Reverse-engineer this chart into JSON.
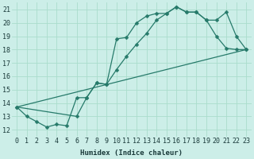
{
  "xlabel": "Humidex (Indice chaleur)",
  "bg_color": "#cceee8",
  "grid_color": "#aaddcc",
  "line_color": "#267a6a",
  "xlim": [
    -0.5,
    23.5
  ],
  "ylim": [
    11.5,
    21.5
  ],
  "yticks": [
    12,
    13,
    14,
    15,
    16,
    17,
    18,
    19,
    20,
    21
  ],
  "xticks": [
    0,
    1,
    2,
    3,
    4,
    5,
    6,
    7,
    8,
    9,
    10,
    11,
    12,
    13,
    14,
    15,
    16,
    17,
    18,
    19,
    20,
    21,
    22,
    23
  ],
  "curve1_x": [
    0,
    1,
    2,
    3,
    4,
    5,
    6,
    7,
    8,
    9,
    10,
    11,
    12,
    13,
    14,
    15,
    16,
    17,
    18,
    19,
    20,
    21,
    22,
    23
  ],
  "curve1_y": [
    13.7,
    13.0,
    12.6,
    12.2,
    12.4,
    12.3,
    14.4,
    14.4,
    15.5,
    15.4,
    18.8,
    18.9,
    20.0,
    20.5,
    20.7,
    20.7,
    21.2,
    20.8,
    20.8,
    20.2,
    19.0,
    18.1,
    18.0,
    18.0
  ],
  "curve2_x": [
    0,
    6,
    7,
    8,
    9,
    10,
    11,
    12,
    13,
    14,
    15,
    16,
    17,
    18,
    19,
    20,
    21,
    22,
    23
  ],
  "curve2_y": [
    13.7,
    13.0,
    14.4,
    15.5,
    15.4,
    16.5,
    17.5,
    18.4,
    19.2,
    20.2,
    20.7,
    21.2,
    20.8,
    20.8,
    20.2,
    20.2,
    20.8,
    19.0,
    18.0
  ],
  "curve3_x": [
    0,
    23
  ],
  "curve3_y": [
    13.7,
    18.0
  ],
  "marker_size": 2.5,
  "linewidth": 0.9
}
